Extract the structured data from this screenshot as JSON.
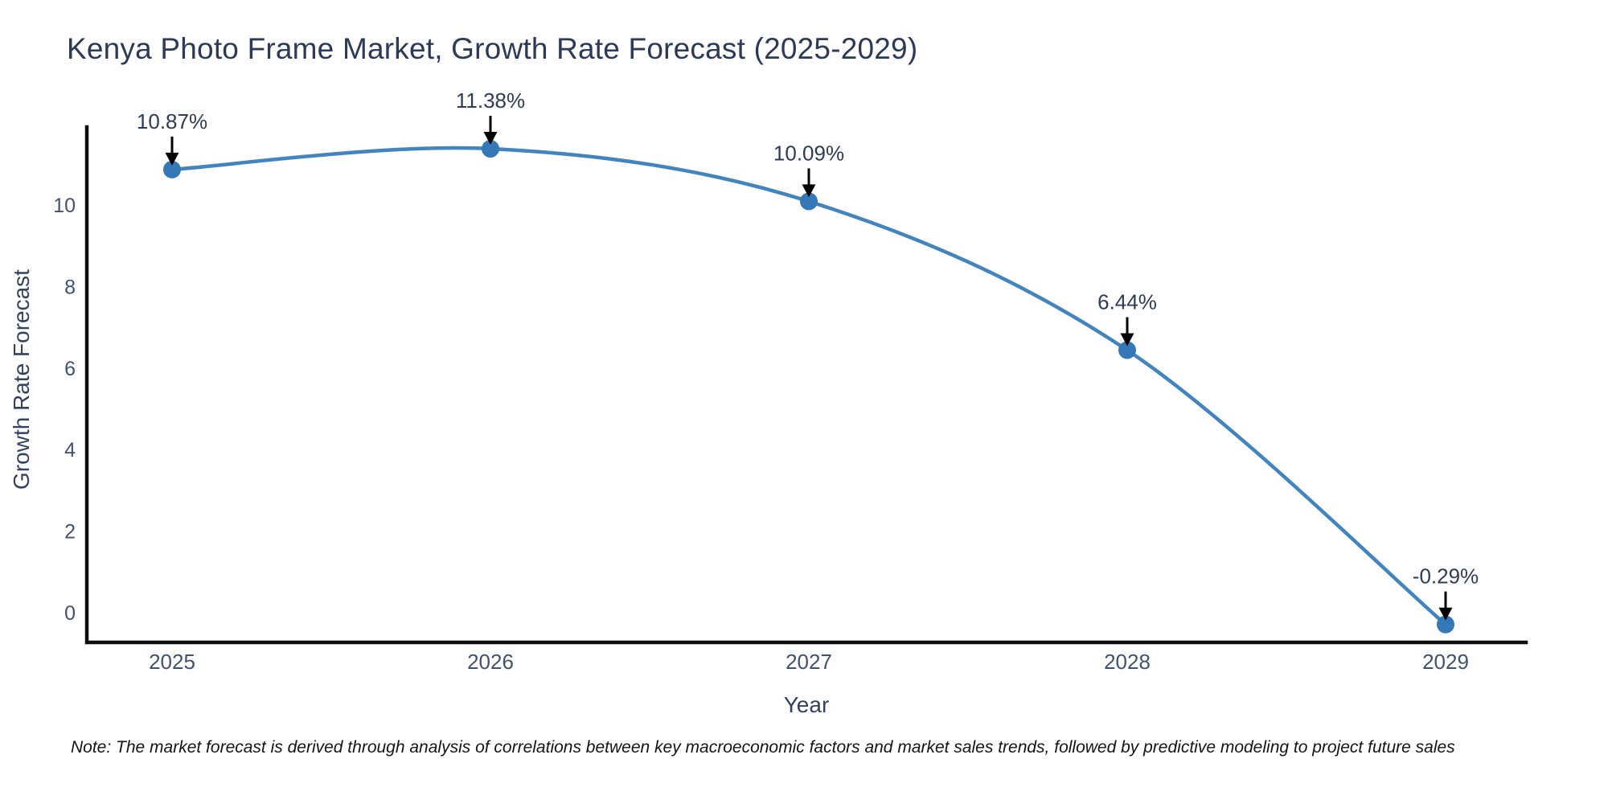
{
  "chart_data": {
    "type": "line",
    "title": "Kenya Photo Frame Market, Growth Rate Forecast (2025-2029)",
    "xlabel": "Year",
    "ylabel": "Growth Rate Forecast",
    "categories": [
      2025,
      2026,
      2027,
      2028,
      2029
    ],
    "series": [
      {
        "name": "Growth Rate Forecast",
        "values": [
          10.87,
          11.38,
          10.09,
          6.44,
          -0.29
        ],
        "point_labels": [
          "10.87%",
          "11.38%",
          "10.09%",
          "6.44%",
          "-0.29%"
        ]
      }
    ],
    "y_ticks": [
      0,
      2,
      4,
      6,
      8,
      10
    ],
    "ylim": [
      -0.77,
      11.91
    ],
    "line_shape": "spline",
    "grid": false,
    "legend": "none",
    "annotations_style": "value label with downward arrow above each point",
    "note": "Note: The market forecast is derived through analysis of correlations between key macroeconomic factors and market sales trends, followed by predictive modeling to project future sales"
  },
  "colors": {
    "line": "#4285be",
    "marker": "#3478b8",
    "axis_line": "#0d0d0d",
    "tick_text": "#42526e",
    "annotation_text": "#2f3b54",
    "arrow": "#000000",
    "title_text": "#2c3a58",
    "background": "#ffffff"
  }
}
